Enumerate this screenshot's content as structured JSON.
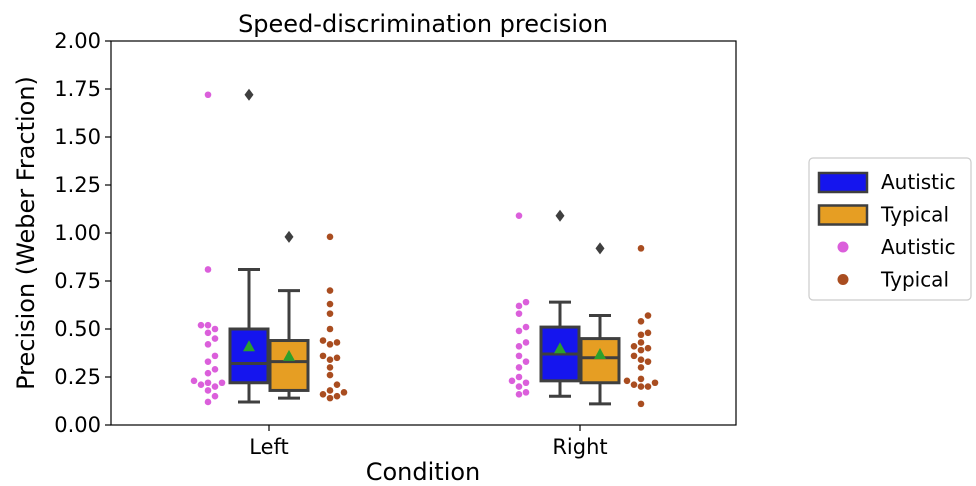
{
  "chart_data": {
    "type": "box",
    "title": "Speed-discrimination precision",
    "xlabel": "Condition",
    "ylabel": "Precision (Weber Fraction)",
    "categories": [
      "Left",
      "Right"
    ],
    "ylim": [
      0,
      2.0
    ],
    "yticks": [
      0.0,
      0.25,
      0.5,
      0.75,
      1.0,
      1.25,
      1.5,
      1.75,
      2.0
    ],
    "ytick_labels": [
      "0.00",
      "0.25",
      "0.50",
      "0.75",
      "1.00",
      "1.25",
      "1.50",
      "1.75",
      "2.00"
    ],
    "legend": {
      "placement": "right",
      "entries": [
        {
          "label": "Autistic",
          "kind": "box",
          "color": "#1515ee"
        },
        {
          "label": "Typical",
          "kind": "box",
          "color": "#e69e23"
        },
        {
          "label": "Autistic",
          "kind": "point",
          "color": "#db5fdb"
        },
        {
          "label": "Typical",
          "kind": "point",
          "color": "#a94d20"
        }
      ]
    },
    "colors": {
      "autistic_box": "#1515ee",
      "typical_box": "#e69e23",
      "autistic_points": "#db5fdb",
      "typical_points": "#a94d20",
      "box_edge": "#3f3f3f",
      "mean_marker": "#2ca02c",
      "outlier": "#3f3f3f"
    },
    "series": [
      {
        "name": "Autistic",
        "boxes": [
          {
            "category": "Left",
            "whisker_low": 0.12,
            "q1": 0.22,
            "median": 0.32,
            "q3": 0.5,
            "whisker_high": 0.81,
            "mean": 0.41,
            "outliers": [
              1.72
            ]
          },
          {
            "category": "Right",
            "whisker_low": 0.15,
            "q1": 0.23,
            "median": 0.37,
            "q3": 0.51,
            "whisker_high": 0.64,
            "mean": 0.4,
            "outliers": [
              1.09
            ]
          }
        ],
        "points": {
          "Left": [
            1.72,
            0.81,
            0.52,
            0.52,
            0.5,
            0.48,
            0.45,
            0.42,
            0.36,
            0.33,
            0.29,
            0.27,
            0.23,
            0.22,
            0.22,
            0.21,
            0.2,
            0.18,
            0.15,
            0.12
          ],
          "Right": [
            1.09,
            0.64,
            0.62,
            0.58,
            0.51,
            0.49,
            0.43,
            0.41,
            0.36,
            0.33,
            0.3,
            0.25,
            0.23,
            0.22,
            0.2,
            0.17,
            0.16
          ]
        }
      },
      {
        "name": "Typical",
        "boxes": [
          {
            "category": "Left",
            "whisker_low": 0.14,
            "q1": 0.18,
            "median": 0.33,
            "q3": 0.44,
            "whisker_high": 0.7,
            "mean": 0.36,
            "outliers": [
              0.98
            ]
          },
          {
            "category": "Right",
            "whisker_low": 0.11,
            "q1": 0.22,
            "median": 0.35,
            "q3": 0.45,
            "whisker_high": 0.57,
            "mean": 0.37,
            "outliers": [
              0.92
            ]
          }
        ],
        "points": {
          "Left": [
            0.98,
            0.7,
            0.63,
            0.58,
            0.5,
            0.44,
            0.43,
            0.42,
            0.36,
            0.35,
            0.34,
            0.3,
            0.26,
            0.21,
            0.18,
            0.17,
            0.16,
            0.15,
            0.14
          ],
          "Right": [
            0.92,
            0.57,
            0.54,
            0.48,
            0.47,
            0.43,
            0.41,
            0.4,
            0.39,
            0.36,
            0.34,
            0.33,
            0.3,
            0.24,
            0.23,
            0.22,
            0.21,
            0.2,
            0.2,
            0.11
          ]
        }
      }
    ]
  }
}
